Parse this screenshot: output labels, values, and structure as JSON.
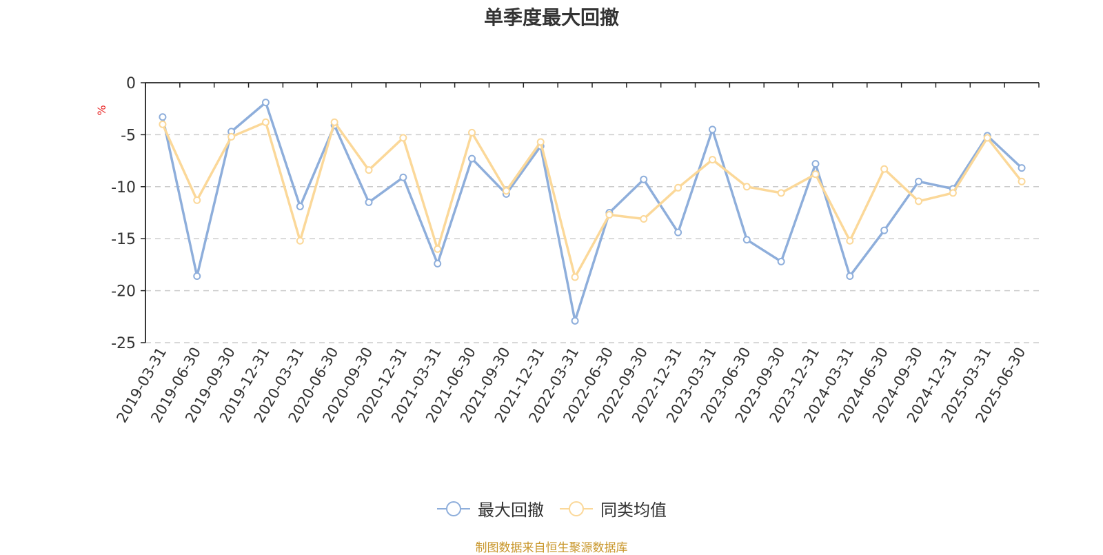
{
  "chart_data": {
    "type": "line",
    "title": "单季度最大回撤",
    "ylabel": "%",
    "xlabel": "",
    "ylim": [
      -25,
      0
    ],
    "yticks": [
      0,
      -5,
      -10,
      -15,
      -20,
      -25
    ],
    "grid": true,
    "legend_position": "bottom-center",
    "categories": [
      "2019-03-31",
      "2019-06-30",
      "2019-09-30",
      "2019-12-31",
      "2020-03-31",
      "2020-06-30",
      "2020-09-30",
      "2020-12-31",
      "2021-03-31",
      "2021-06-30",
      "2021-09-30",
      "2021-12-31",
      "2022-03-31",
      "2022-06-30",
      "2022-09-30",
      "2022-12-31",
      "2023-03-31",
      "2023-06-30",
      "2023-09-30",
      "2023-12-31",
      "2024-03-31",
      "2024-06-30",
      "2024-09-30",
      "2024-12-31",
      "2025-03-31",
      "2025-06-30"
    ],
    "series": [
      {
        "name": "最大回撤",
        "color": "#8eaedb",
        "values": [
          -3.3,
          -18.6,
          -4.7,
          -1.9,
          -11.9,
          -4.1,
          -11.5,
          -9.1,
          -17.4,
          -7.3,
          -10.7,
          -6.1,
          -22.9,
          -12.5,
          -9.3,
          -14.4,
          -4.5,
          -15.1,
          -17.2,
          -7.8,
          -18.6,
          -14.2,
          -9.5,
          -10.2,
          -5.1,
          -8.2
        ]
      },
      {
        "name": "同类均值",
        "color": "#fbd899",
        "values": [
          -4.0,
          -11.3,
          -5.2,
          -3.8,
          -15.2,
          -3.8,
          -8.4,
          -5.3,
          -16.0,
          -4.8,
          -10.4,
          -5.7,
          -18.7,
          -12.7,
          -13.1,
          -10.1,
          -7.4,
          -10.0,
          -10.6,
          -8.8,
          -15.2,
          -8.3,
          -11.4,
          -10.6,
          -5.3,
          -9.5
        ]
      }
    ]
  },
  "source_note": "制图数据来自恒生聚源数据库",
  "colors": {
    "ylabel": "#e82020",
    "axis": "#222222",
    "grid": "#cccccc",
    "source_note": "#c8962a"
  }
}
